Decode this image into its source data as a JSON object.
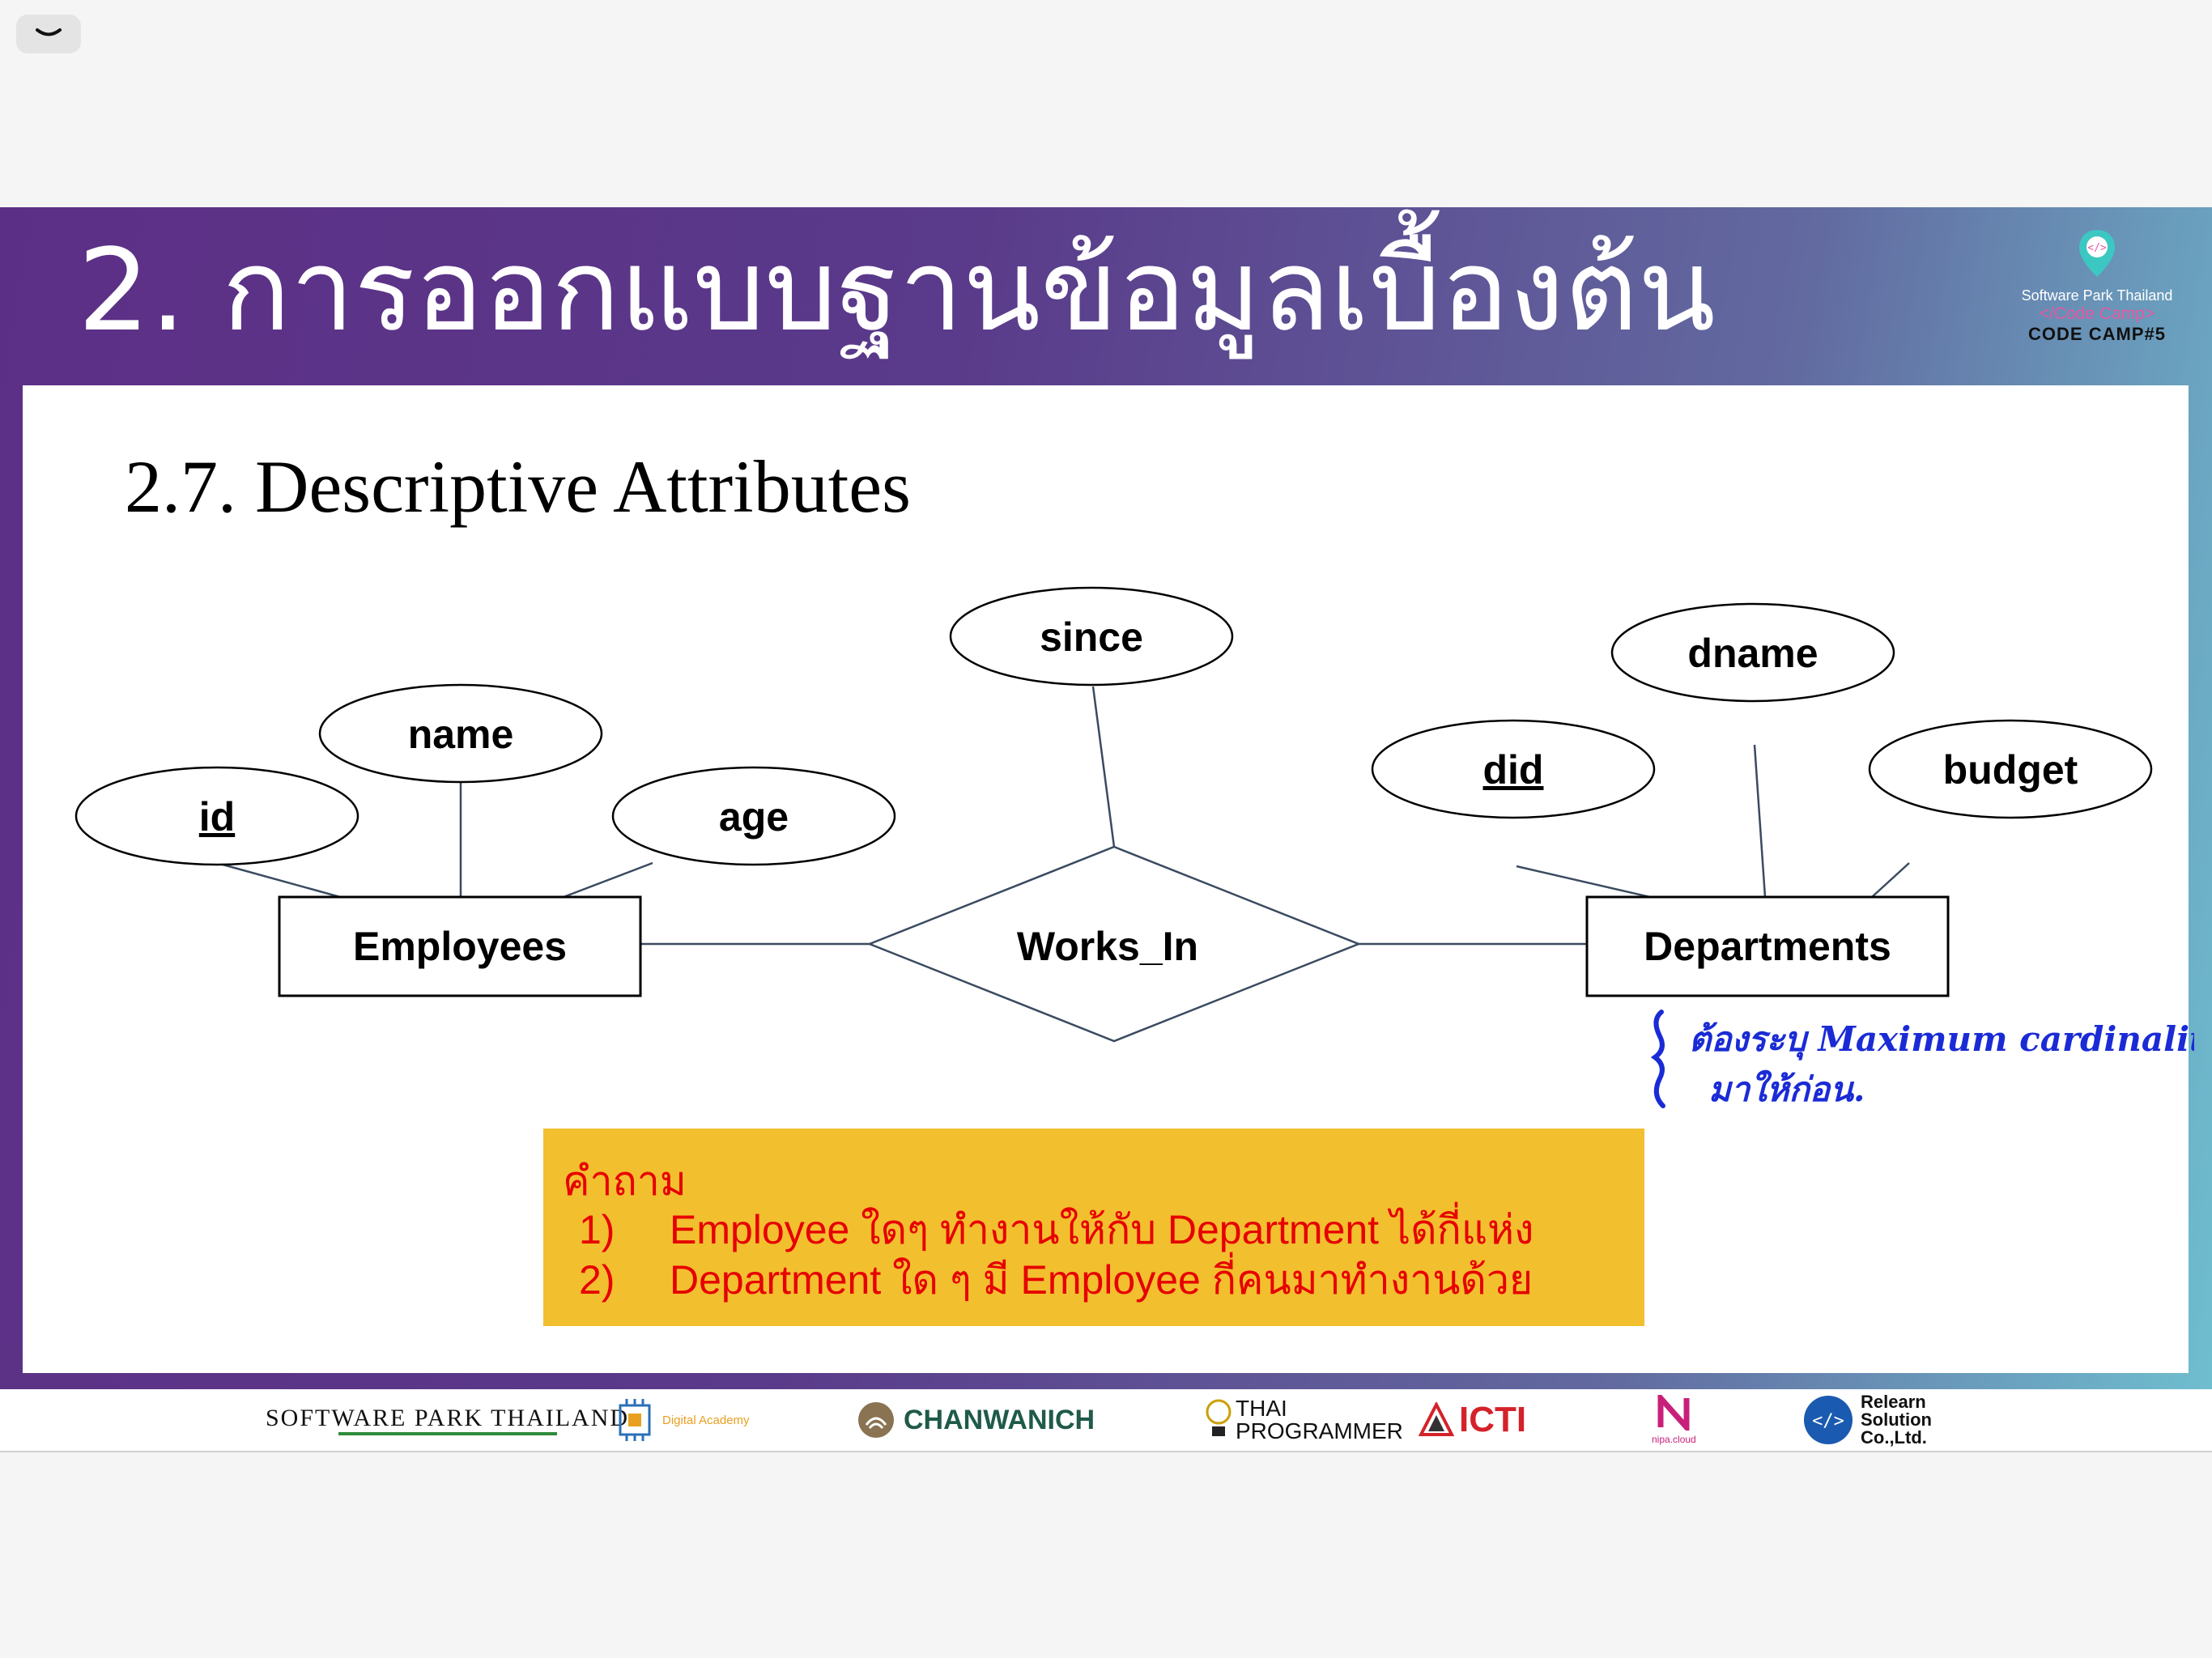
{
  "header": {
    "title": "2. การออกแบบฐานข้อมูลเบื้องต้น",
    "brand_line1": "Software Park Thailand",
    "brand_line2": "</Code Camp>",
    "brand_line3": "CODE CAMP#5"
  },
  "section": {
    "title": "2.7.  Descriptive Attributes"
  },
  "er_diagram": {
    "entities": [
      "Employees",
      "Departments"
    ],
    "relationship": "Works_In",
    "attributes": {
      "employees": [
        "id",
        "name",
        "age"
      ],
      "relationship": [
        "since"
      ],
      "departments": [
        "did",
        "dname",
        "budget"
      ]
    },
    "key_attributes": [
      "id",
      "did"
    ]
  },
  "question_box": {
    "heading": "คำถาม",
    "items": [
      {
        "num": "1)",
        "text": "Employee ใดๆ ทำงานให้กับ Department ได้กี่แห่ง"
      },
      {
        "num": "2)",
        "text": "Department ใด ๆ มี Employee กี่คนมาทำงานด้วย"
      }
    ]
  },
  "handwritten_note": {
    "line1": "ต้องระบุ Maximum cardinality",
    "line2": "มาให้ก่อน."
  },
  "sponsors": [
    "SOFTWARE PARK THAILAND",
    "Digital Academy",
    "CHANWANICH",
    "THAI PROGRAMMER",
    "ICTI",
    "nipa.cloud",
    "Relearn Solution Co.,Ltd."
  ],
  "colors": {
    "title_band_start": "#5c2f86",
    "title_band_end": "#6fc0d0",
    "question_box": "#f2bf2f",
    "question_text": "#e60000",
    "note_ink": "#1a2bd6"
  }
}
